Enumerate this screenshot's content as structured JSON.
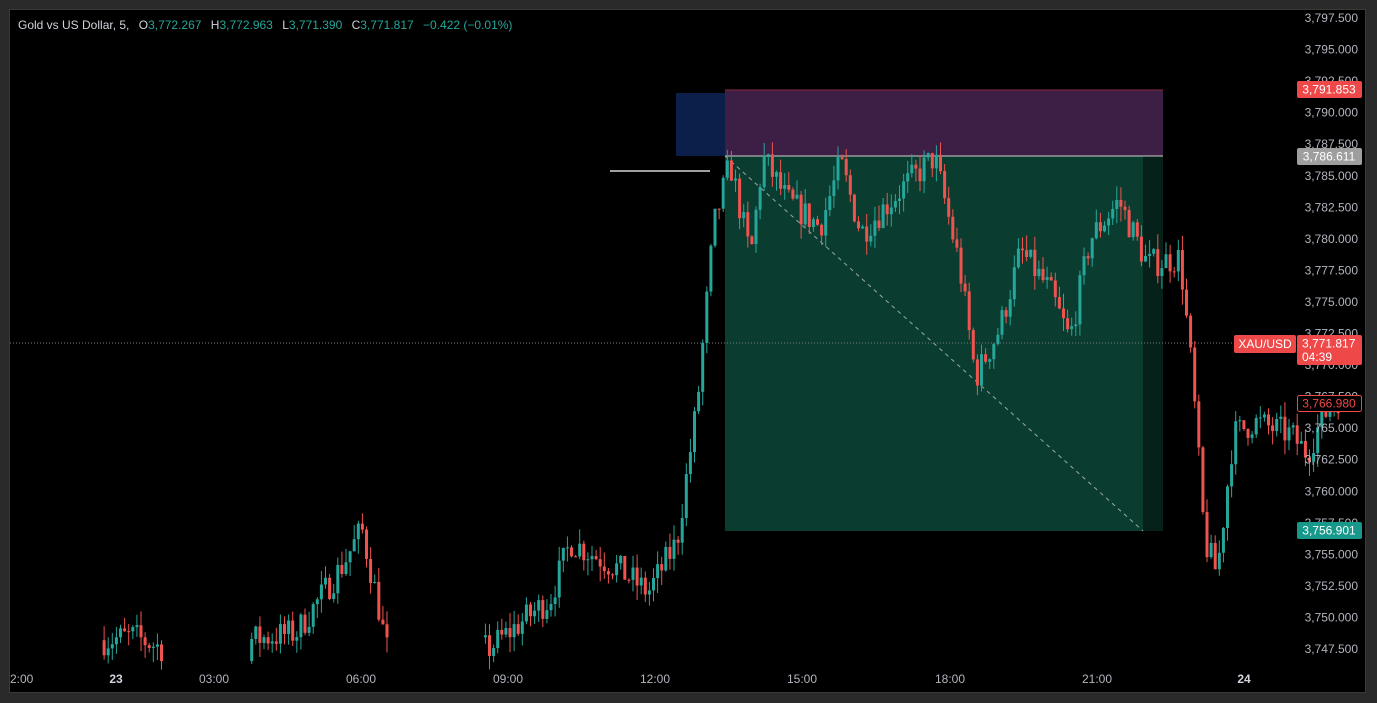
{
  "legend": {
    "title": "Gold vs US Dollar, 5,",
    "o_label": "O",
    "o": "3,772.267",
    "h_label": "H",
    "h": "3,772.963",
    "l_label": "L",
    "l": "3,771.390",
    "c_label": "C",
    "c": "3,771.817",
    "change": "−0.422 (−0.01%)"
  },
  "colors": {
    "up": "#26a69a",
    "down": "#ef5350",
    "target_zone": "#0a3d30",
    "stop_zone": "#3d1f45",
    "entry_zone": "#0b1f4a",
    "background": "#000000",
    "axis_text": "#b2b5be"
  },
  "price_labels": {
    "stop": "3,791.853",
    "entry": "3,786.611",
    "symbol": "XAU/USD",
    "current": "3,771.817",
    "countdown": "04:39",
    "alert": "3,766.980",
    "target": "3,756.901"
  },
  "chart_data": {
    "type": "candlestick",
    "symbol": "XAU/USD",
    "interval": "5",
    "y_ticks": [
      "3,797.500",
      "3,795.000",
      "3,792.500",
      "3,790.000",
      "3,787.500",
      "3,785.000",
      "3,782.500",
      "3,780.000",
      "3,777.500",
      "3,775.000",
      "3,772.500",
      "3,770.000",
      "3,767.500",
      "3,765.000",
      "3,762.500",
      "3,760.000",
      "3,757.500",
      "3,755.000",
      "3,752.500",
      "3,750.000",
      "3,747.500"
    ],
    "x_ticks": [
      "2:00",
      "23",
      "03:00",
      "06:00",
      "09:00",
      "12:00",
      "15:00",
      "18:00",
      "21:00",
      "24"
    ],
    "ylim": [
      3746.5,
      3798.5
    ],
    "levels": {
      "stop": 3791.853,
      "entry": 3786.611,
      "target": 3756.901,
      "current": 3771.817,
      "alert": 3766.98,
      "swing_line": 3785.3
    },
    "close_path": [
      {
        "t": "22 23:55",
        "p": 3748.2
      },
      {
        "t": "23 00:30",
        "p": 3748.5
      },
      {
        "t": "23 01:05",
        "p": 3747.6
      },
      {
        "t": "23 03:00",
        "p": 3748.3
      },
      {
        "t": "23 03:50",
        "p": 3748.8
      },
      {
        "t": "23 04:45",
        "p": 3754.0
      },
      {
        "t": "23 05:10",
        "p": 3757.0
      },
      {
        "t": "23 05:30",
        "p": 3751.0
      },
      {
        "t": "23 05:40",
        "p": 3747.5
      },
      {
        "t": "23 07:45",
        "p": 3747.5
      },
      {
        "t": "23 09:00",
        "p": 3751.5
      },
      {
        "t": "23 09:25",
        "p": 3756.0
      },
      {
        "t": "23 10:20",
        "p": 3754.0
      },
      {
        "t": "23 11:00",
        "p": 3752.0
      },
      {
        "t": "23 11:35",
        "p": 3756.0
      },
      {
        "t": "23 12:00",
        "p": 3767.0
      },
      {
        "t": "23 12:20",
        "p": 3781.0
      },
      {
        "t": "23 12:40",
        "p": 3786.0
      },
      {
        "t": "23 13:05",
        "p": 3778.5
      },
      {
        "t": "23 13:20",
        "p": 3786.5
      },
      {
        "t": "23 13:50",
        "p": 3783.0
      },
      {
        "t": "23 14:30",
        "p": 3781.0
      },
      {
        "t": "23 14:55",
        "p": 3786.0
      },
      {
        "t": "23 15:20",
        "p": 3780.5
      },
      {
        "t": "23 16:10",
        "p": 3784.0
      },
      {
        "t": "23 16:50",
        "p": 3786.5
      },
      {
        "t": "23 17:20",
        "p": 3778.0
      },
      {
        "t": "23 17:40",
        "p": 3769.0
      },
      {
        "t": "23 18:10",
        "p": 3773.0
      },
      {
        "t": "23 18:35",
        "p": 3779.0
      },
      {
        "t": "23 19:10",
        "p": 3776.0
      },
      {
        "t": "23 19:35",
        "p": 3772.0
      },
      {
        "t": "23 20:00",
        "p": 3780.0
      },
      {
        "t": "23 20:35",
        "p": 3783.0
      },
      {
        "t": "23 21:10",
        "p": 3778.0
      },
      {
        "t": "23 21:50",
        "p": 3778.5
      },
      {
        "t": "23 22:05",
        "p": 3769.0
      },
      {
        "t": "23 22:20",
        "p": 3756.0
      },
      {
        "t": "23 22:35",
        "p": 3753.5
      },
      {
        "t": "23 22:55",
        "p": 3764.5
      },
      {
        "t": "23 23:20",
        "p": 3765.5
      },
      {
        "t": "24 00:05",
        "p": 3764.5
      },
      {
        "t": "24 00:25",
        "p": 3763.0
      },
      {
        "t": "24 00:45",
        "p": 3766.0
      },
      {
        "t": "24 01:05",
        "p": 3767.5
      }
    ]
  }
}
